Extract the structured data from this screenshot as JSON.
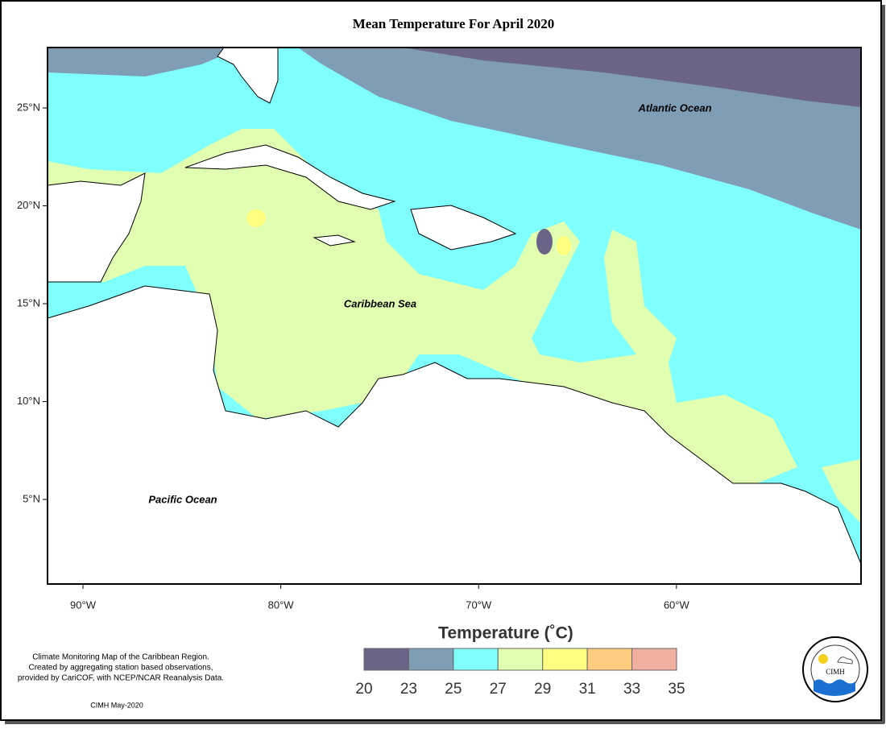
{
  "header": {
    "title": "Mean Temperature For April 2020"
  },
  "map": {
    "lon_ticks": [
      "90°W",
      "80°W",
      "70°W",
      "60°W"
    ],
    "lat_ticks": [
      "25°N",
      "20°N",
      "15°N",
      "10°N",
      "5°N"
    ],
    "labels": [
      "Atlantic Ocean",
      "Caribbean Sea",
      "Pacific Ocean"
    ]
  },
  "legend": {
    "title": "Temperature (˚C)",
    "ticks": [
      20,
      23,
      25,
      27,
      29,
      31,
      33,
      35
    ],
    "colors": [
      "#6b6488",
      "#7f9db5",
      "#80ffff",
      "#e0ffb0",
      "#ffff80",
      "#ffcc80",
      "#f0b0a0"
    ]
  },
  "footer": {
    "notes": [
      "Climate Monitoring Map of the Caribbean Region.",
      "Created by aggregating station based observations,",
      "provided by CariCOF, with NCEP/NCAR Reanalysis Data."
    ],
    "credit": "CIMH May-2020",
    "logo": "CIMH"
  }
}
